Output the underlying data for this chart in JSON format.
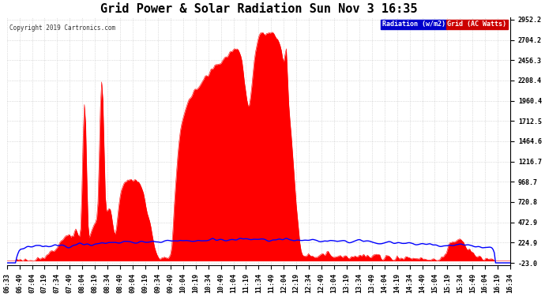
{
  "title": "Grid Power & Solar Radiation Sun Nov 3 16:35",
  "copyright": "Copyright 2019 Cartronics.com",
  "legend_radiation": "Radiation (w/m2)",
  "legend_grid": "Grid (AC Watts)",
  "y_min": -23.0,
  "y_max": 2952.2,
  "y_ticks": [
    -23.0,
    224.9,
    472.9,
    720.8,
    968.7,
    1216.7,
    1464.6,
    1712.5,
    1960.4,
    2208.4,
    2456.3,
    2704.2,
    2952.2
  ],
  "radiation_color": "#FF0000",
  "grid_line_color": "#0000FF",
  "background_color": "#FFFFFF",
  "plot_bg_color": "#FFFFFF",
  "title_fontsize": 11,
  "tick_fontsize": 6,
  "x_labels": [
    "06:33",
    "06:49",
    "07:04",
    "07:19",
    "07:34",
    "07:49",
    "08:04",
    "08:19",
    "08:34",
    "08:49",
    "09:04",
    "09:19",
    "09:34",
    "09:49",
    "10:04",
    "10:19",
    "10:34",
    "10:49",
    "11:04",
    "11:19",
    "11:34",
    "11:49",
    "12:04",
    "12:19",
    "12:34",
    "12:49",
    "13:04",
    "13:19",
    "13:34",
    "13:49",
    "14:04",
    "14:19",
    "14:34",
    "14:49",
    "15:04",
    "15:19",
    "15:34",
    "15:49",
    "16:04",
    "16:19",
    "16:34"
  ],
  "fig_width": 6.9,
  "fig_height": 3.75,
  "dpi": 100
}
